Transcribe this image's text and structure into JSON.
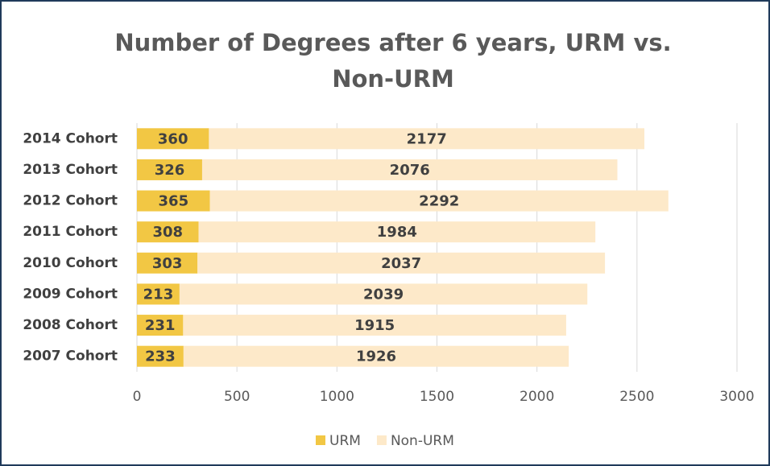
{
  "chart_data": {
    "type": "bar",
    "orientation": "horizontal",
    "stacked": true,
    "title": "Number of Degrees after 6 years, URM vs. Non-URM",
    "categories": [
      "2014 Cohort",
      "2013 Cohort",
      "2012 Cohort",
      "2011 Cohort",
      "2010 Cohort",
      "2009 Cohort",
      "2008 Cohort",
      "2007 Cohort"
    ],
    "series": [
      {
        "name": "URM",
        "color": "#f2c744",
        "values": [
          360,
          326,
          365,
          308,
          303,
          213,
          231,
          233
        ]
      },
      {
        "name": "Non-URM",
        "color": "#fde9c9",
        "values": [
          2177,
          2076,
          2292,
          1984,
          2037,
          2039,
          1915,
          1926
        ]
      }
    ],
    "xlim": [
      0,
      3000
    ],
    "xticks": [
      0,
      500,
      1000,
      1500,
      2000,
      2500,
      3000
    ],
    "grid": true,
    "legend": "bottom"
  }
}
